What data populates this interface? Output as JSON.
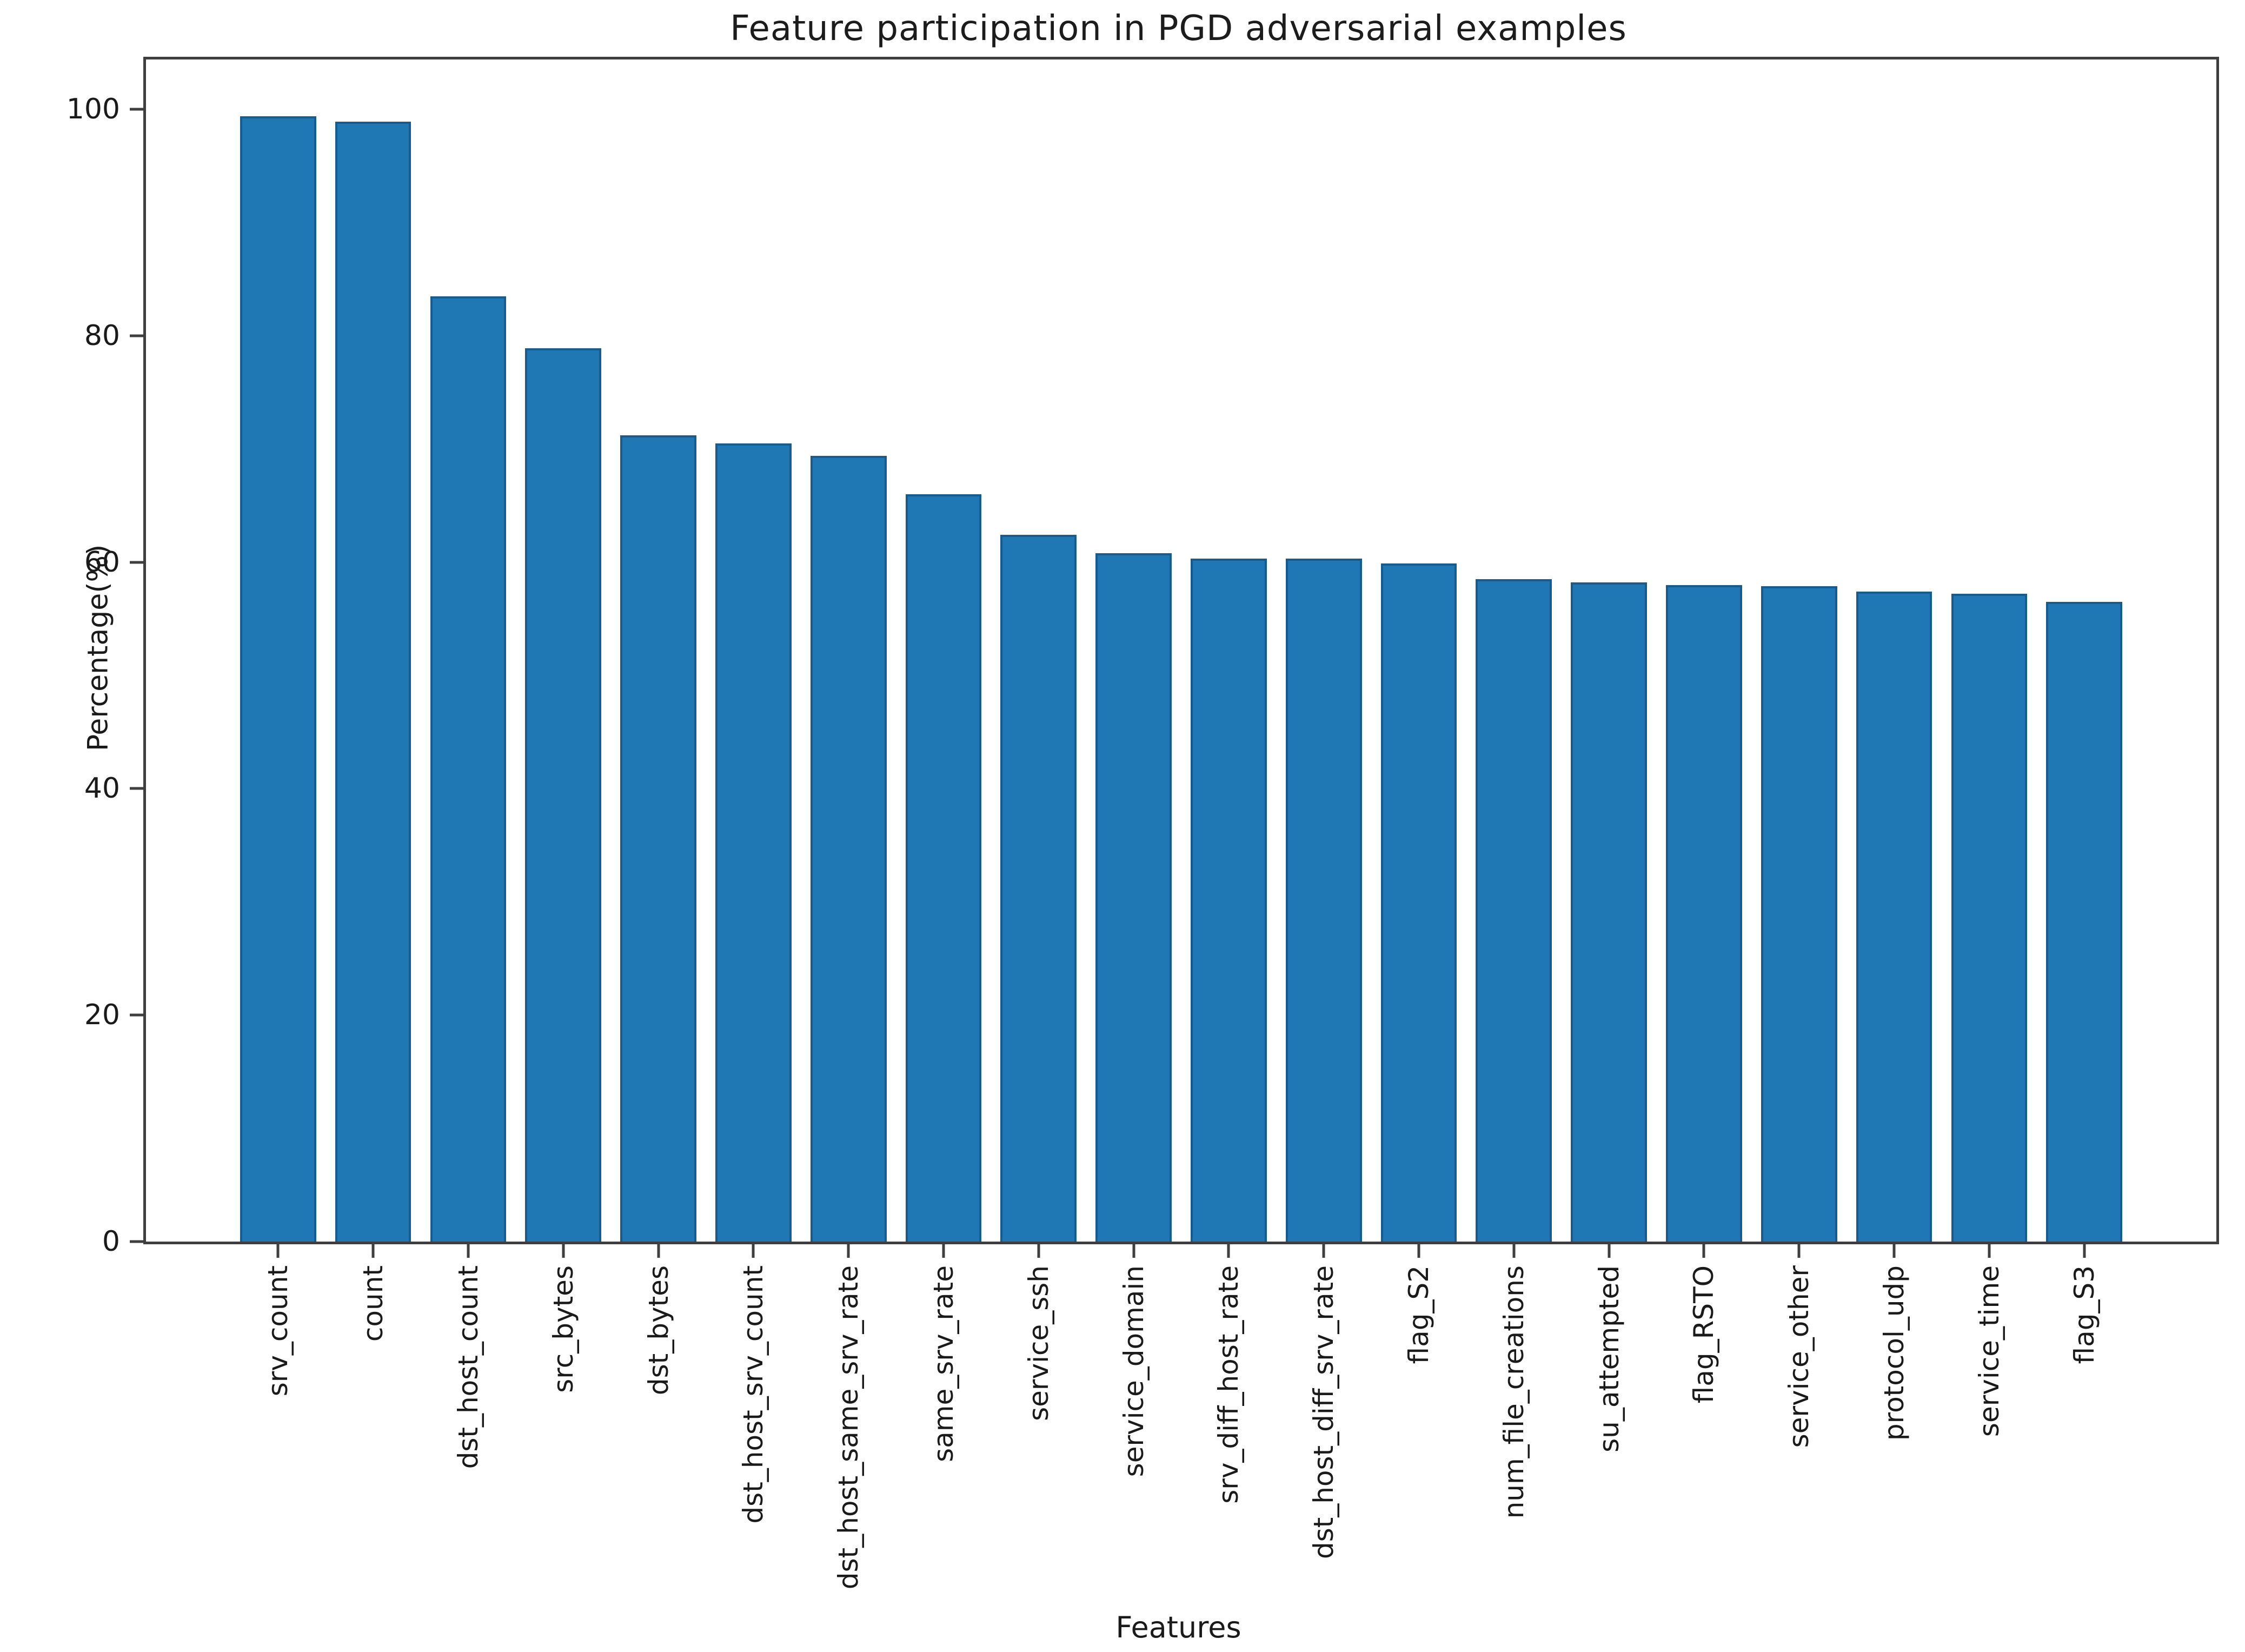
{
  "chart_data": {
    "type": "bar",
    "title": "Feature participation in PGD adversarial examples",
    "xlabel": "Features",
    "ylabel": "Percentage(%)",
    "categories": [
      "srv_count",
      "count",
      "dst_host_count",
      "src_bytes",
      "dst_bytes",
      "dst_host_srv_count",
      "dst_host_same_srv_rate",
      "same_srv_rate",
      "service_ssh",
      "service_domain",
      "srv_diff_host_rate",
      "dst_host_diff_srv_rate",
      "flag_S2",
      "num_file_creations",
      "su_attempted",
      "flag_RSTO",
      "service_other",
      "protocol_udp",
      "service_time",
      "flag_S3"
    ],
    "values": [
      99.4,
      98.9,
      83.5,
      78.9,
      71.2,
      70.5,
      69.4,
      66.0,
      62.4,
      60.8,
      60.3,
      60.3,
      59.9,
      58.5,
      58.2,
      58.0,
      57.9,
      57.4,
      57.2,
      56.5
    ],
    "ylim": [
      0,
      104.4
    ],
    "yticks": [
      0,
      20,
      40,
      60,
      80,
      100
    ],
    "xlim": [
      -1.39,
      20.39
    ],
    "bar_width_units": 0.8,
    "bar_color": "#1f77b4",
    "bar_edge_color": "#175c8e",
    "spine_color": "#3f3f3f",
    "grid": false,
    "legend_position": "none"
  }
}
